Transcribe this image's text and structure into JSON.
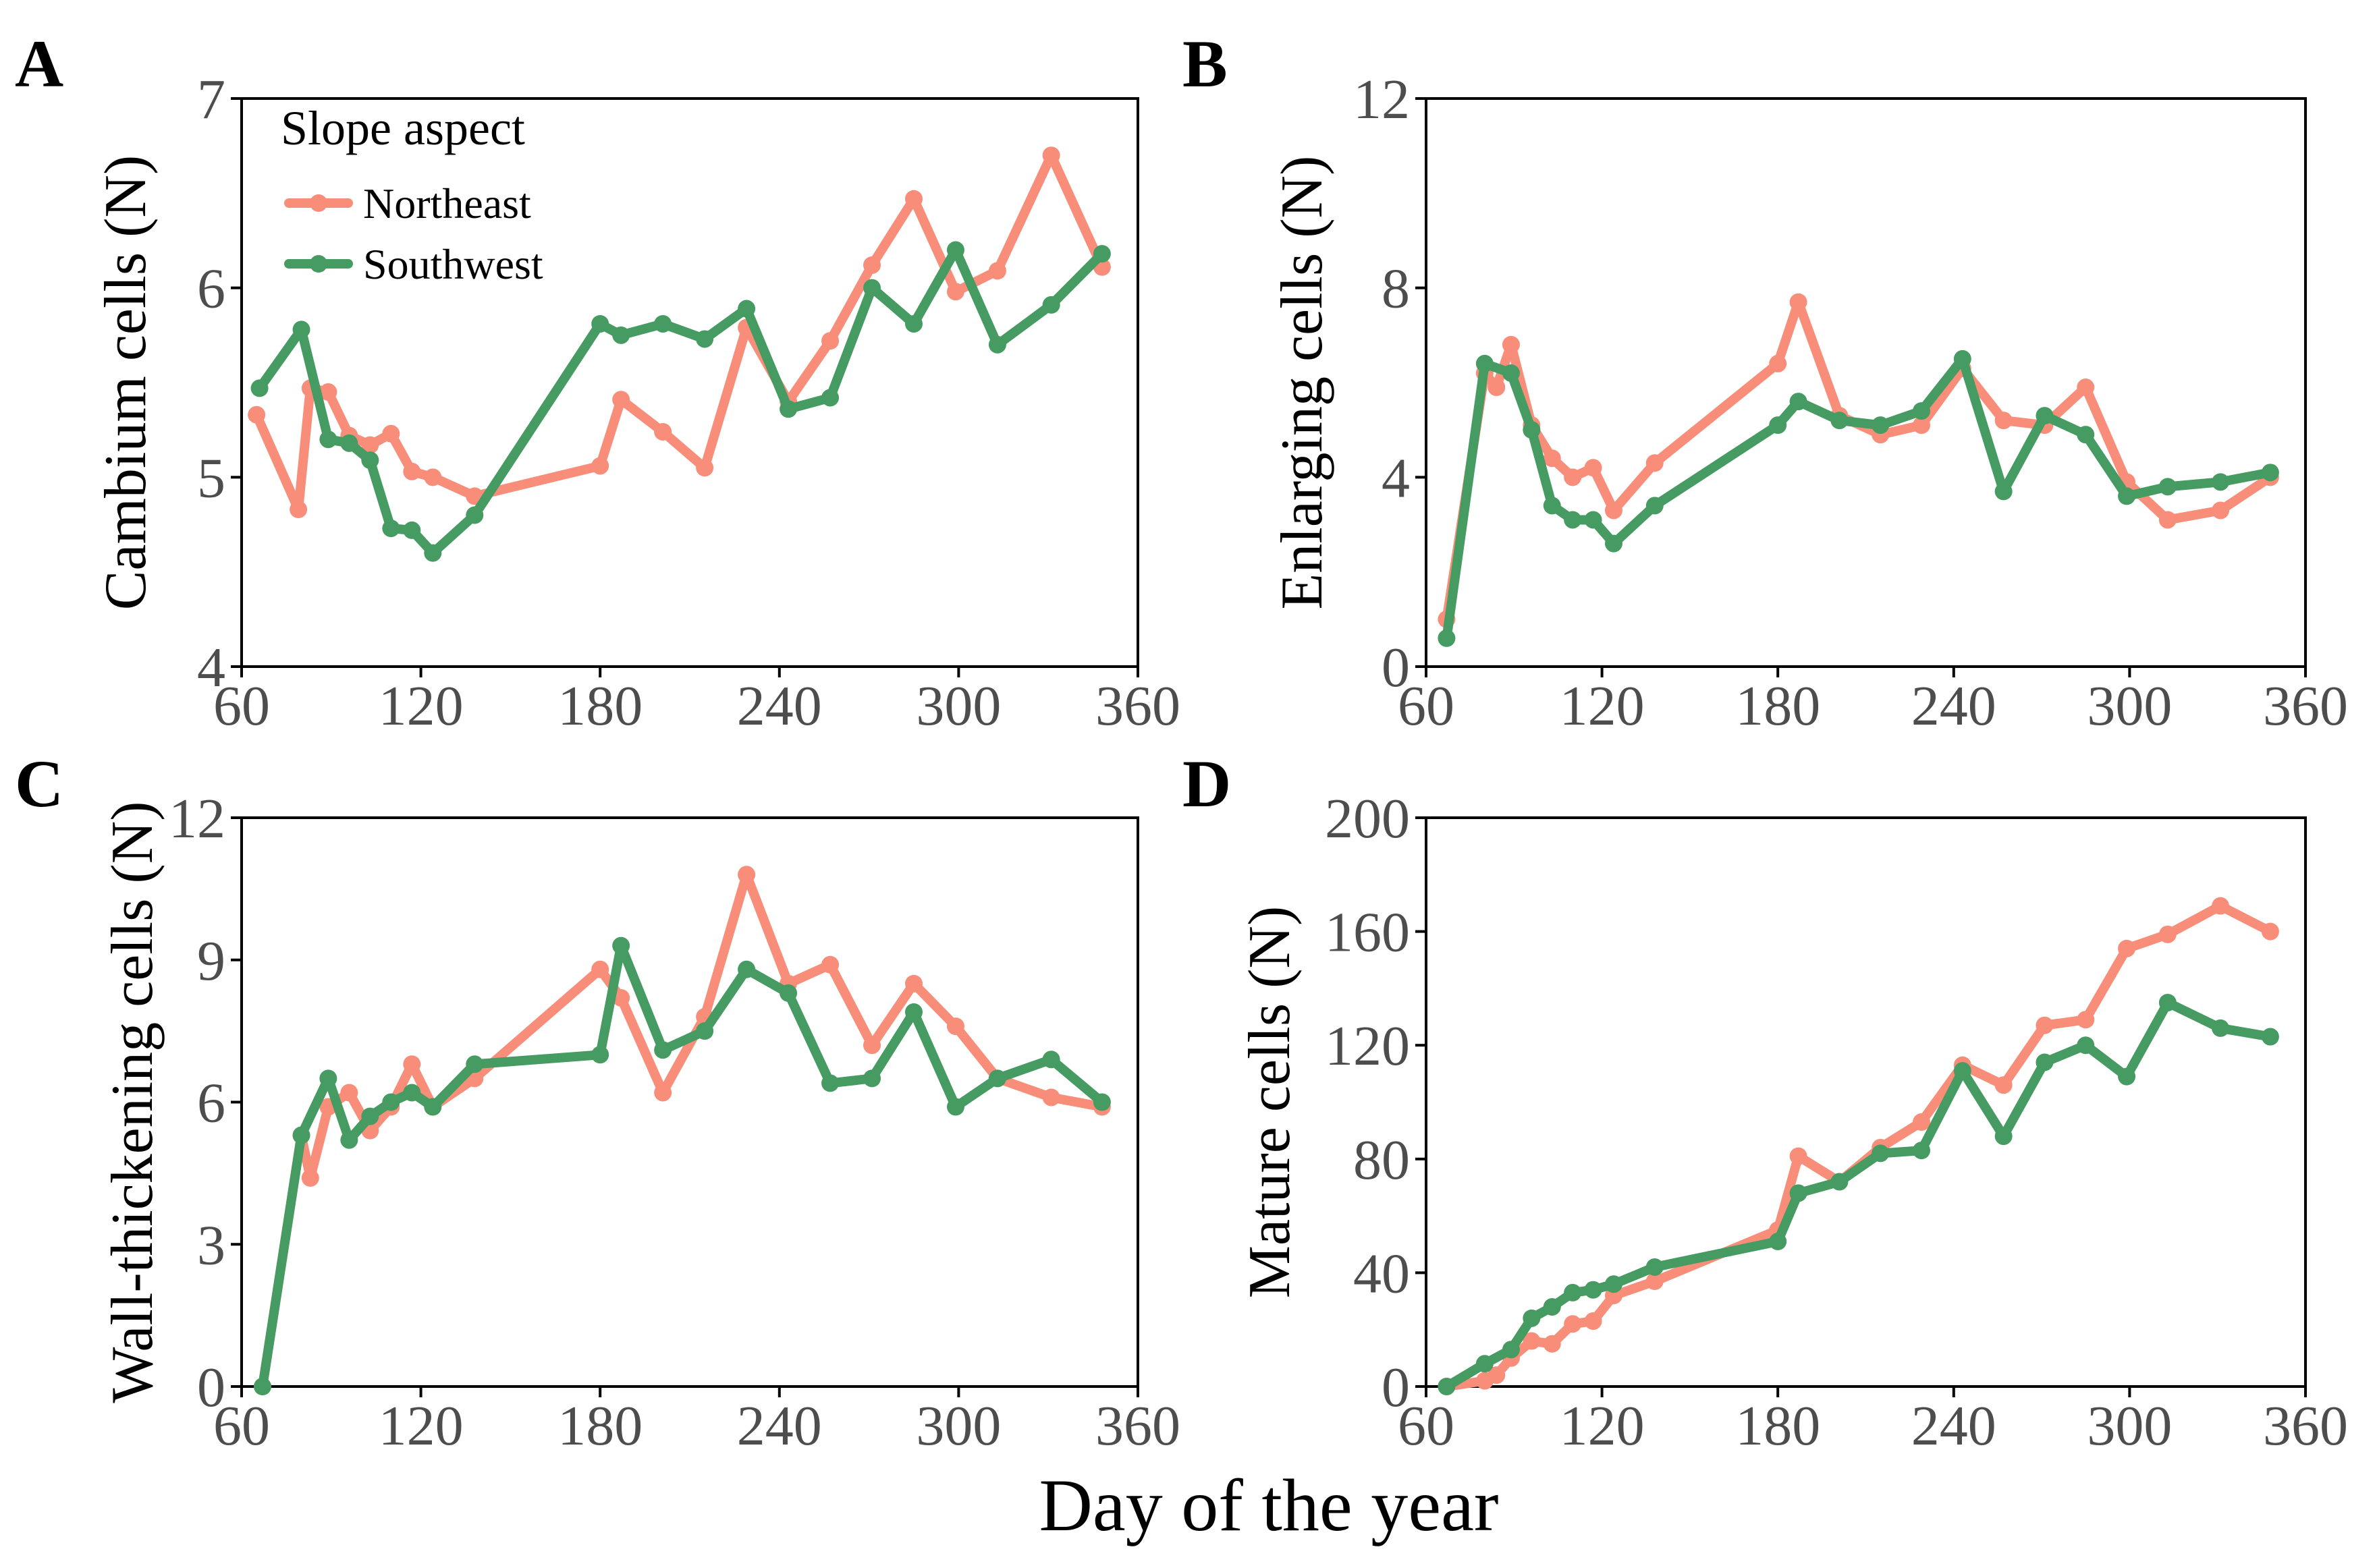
{
  "figure": {
    "xlabel": "Day of the year",
    "colors": {
      "northeast": "#f88e79",
      "southwest": "#469b62"
    }
  },
  "legend": {
    "title": "Slope aspect",
    "entries": [
      "Northeast",
      "Southwest"
    ]
  },
  "chart_data": [
    {
      "type": "line",
      "panel": "A",
      "ylabel": "Cambium cells (N)",
      "xlim": [
        60,
        360
      ],
      "ylim": [
        4,
        7
      ],
      "xticks": [
        60,
        120,
        180,
        240,
        300,
        360
      ],
      "yticks": [
        4,
        5,
        6,
        7
      ],
      "legend": true,
      "series": [
        {
          "name": "Northeast",
          "x": [
            65,
            79,
            83,
            89,
            96,
            103,
            110,
            117,
            124,
            138,
            180,
            187,
            201,
            215,
            229,
            243,
            257,
            271,
            285,
            299,
            313,
            331,
            348
          ],
          "y": [
            5.33,
            4.83,
            5.47,
            5.45,
            5.22,
            5.17,
            5.23,
            5.03,
            5.0,
            4.9,
            5.06,
            5.41,
            5.24,
            5.05,
            5.79,
            5.4,
            5.72,
            6.12,
            6.47,
            5.98,
            6.09,
            6.7,
            6.11
          ]
        },
        {
          "name": "Southwest",
          "x": [
            66,
            80,
            89,
            96,
            103,
            110,
            117,
            124,
            138,
            180,
            187,
            201,
            215,
            229,
            243,
            257,
            271,
            285,
            299,
            313,
            331,
            348
          ],
          "y": [
            5.47,
            5.78,
            5.2,
            5.18,
            5.09,
            4.73,
            4.72,
            4.6,
            4.8,
            5.81,
            5.75,
            5.81,
            5.73,
            5.89,
            5.36,
            5.42,
            6.0,
            5.81,
            6.2,
            5.7,
            5.91,
            6.18
          ]
        }
      ]
    },
    {
      "type": "line",
      "panel": "B",
      "ylabel": "Enlarging cells (N)",
      "xlim": [
        60,
        360
      ],
      "ylim": [
        0,
        12
      ],
      "xticks": [
        60,
        120,
        180,
        240,
        300,
        360
      ],
      "yticks": [
        0,
        4,
        8,
        12
      ],
      "legend": false,
      "series": [
        {
          "name": "Northeast",
          "x": [
            67,
            80,
            84,
            89,
            96,
            103,
            110,
            117,
            124,
            138,
            180,
            187,
            201,
            215,
            229,
            243,
            257,
            271,
            285,
            299,
            313,
            331,
            348
          ],
          "y": [
            1.0,
            6.2,
            5.9,
            6.8,
            5.1,
            4.4,
            4.0,
            4.2,
            3.3,
            4.3,
            6.4,
            7.7,
            5.3,
            4.9,
            5.1,
            6.3,
            5.2,
            5.1,
            5.9,
            3.9,
            3.1,
            3.3,
            4.0
          ]
        },
        {
          "name": "Southwest",
          "x": [
            67,
            80,
            89,
            96,
            103,
            110,
            117,
            124,
            138,
            180,
            187,
            201,
            215,
            229,
            243,
            257,
            271,
            285,
            299,
            313,
            331,
            348
          ],
          "y": [
            0.6,
            6.4,
            6.2,
            5.0,
            3.4,
            3.1,
            3.1,
            2.6,
            3.4,
            5.1,
            5.6,
            5.2,
            5.1,
            5.4,
            6.5,
            3.7,
            5.3,
            4.9,
            3.6,
            3.8,
            3.9,
            4.1
          ]
        }
      ]
    },
    {
      "type": "line",
      "panel": "C",
      "ylabel": "Wall-thickening cells (N)",
      "xlim": [
        60,
        360
      ],
      "ylim": [
        0,
        12
      ],
      "xticks": [
        60,
        120,
        180,
        240,
        300,
        360
      ],
      "yticks": [
        0,
        3,
        6,
        9,
        12
      ],
      "legend": false,
      "series": [
        {
          "name": "Northeast",
          "x": [
            67,
            80,
            83,
            89,
            96,
            103,
            110,
            117,
            124,
            138,
            180,
            187,
            201,
            215,
            229,
            243,
            257,
            271,
            285,
            299,
            313,
            331,
            348
          ],
          "y": [
            0,
            5.3,
            4.4,
            5.9,
            6.2,
            5.4,
            5.9,
            6.8,
            5.9,
            6.5,
            8.8,
            8.2,
            6.2,
            7.8,
            10.8,
            8.5,
            8.9,
            7.2,
            8.5,
            7.6,
            6.5,
            6.1,
            5.9
          ]
        },
        {
          "name": "Southwest",
          "x": [
            67,
            80,
            89,
            96,
            103,
            110,
            117,
            124,
            138,
            180,
            187,
            201,
            215,
            229,
            243,
            257,
            271,
            285,
            299,
            313,
            331,
            348
          ],
          "y": [
            0,
            5.3,
            6.5,
            5.2,
            5.7,
            6.0,
            6.2,
            5.9,
            6.8,
            7.0,
            9.3,
            7.1,
            7.5,
            8.8,
            8.3,
            6.4,
            6.5,
            7.9,
            5.9,
            6.5,
            6.9,
            6.0
          ]
        }
      ]
    },
    {
      "type": "line",
      "panel": "D",
      "ylabel": "Mature cells (N)",
      "xlim": [
        60,
        360
      ],
      "ylim": [
        0,
        200
      ],
      "xticks": [
        60,
        120,
        180,
        240,
        300,
        360
      ],
      "yticks": [
        0,
        40,
        80,
        120,
        160,
        200
      ],
      "legend": false,
      "series": [
        {
          "name": "Northeast",
          "x": [
            67,
            80,
            84,
            89,
            96,
            103,
            110,
            117,
            124,
            138,
            180,
            187,
            201,
            215,
            229,
            243,
            257,
            271,
            285,
            299,
            313,
            331,
            348
          ],
          "y": [
            0,
            2,
            4,
            10,
            16,
            15,
            22,
            23,
            32,
            37,
            55,
            81,
            72,
            84,
            93,
            113,
            106,
            127,
            129,
            154,
            159,
            169,
            160
          ]
        },
        {
          "name": "Southwest",
          "x": [
            67,
            80,
            89,
            96,
            103,
            110,
            117,
            124,
            138,
            180,
            187,
            201,
            215,
            229,
            243,
            257,
            271,
            285,
            299,
            313,
            331,
            348
          ],
          "y": [
            0,
            8,
            13,
            24,
            28,
            33,
            34,
            36,
            42,
            51,
            68,
            72,
            82,
            83,
            111,
            88,
            114,
            120,
            109,
            135,
            126,
            123
          ]
        }
      ]
    }
  ]
}
